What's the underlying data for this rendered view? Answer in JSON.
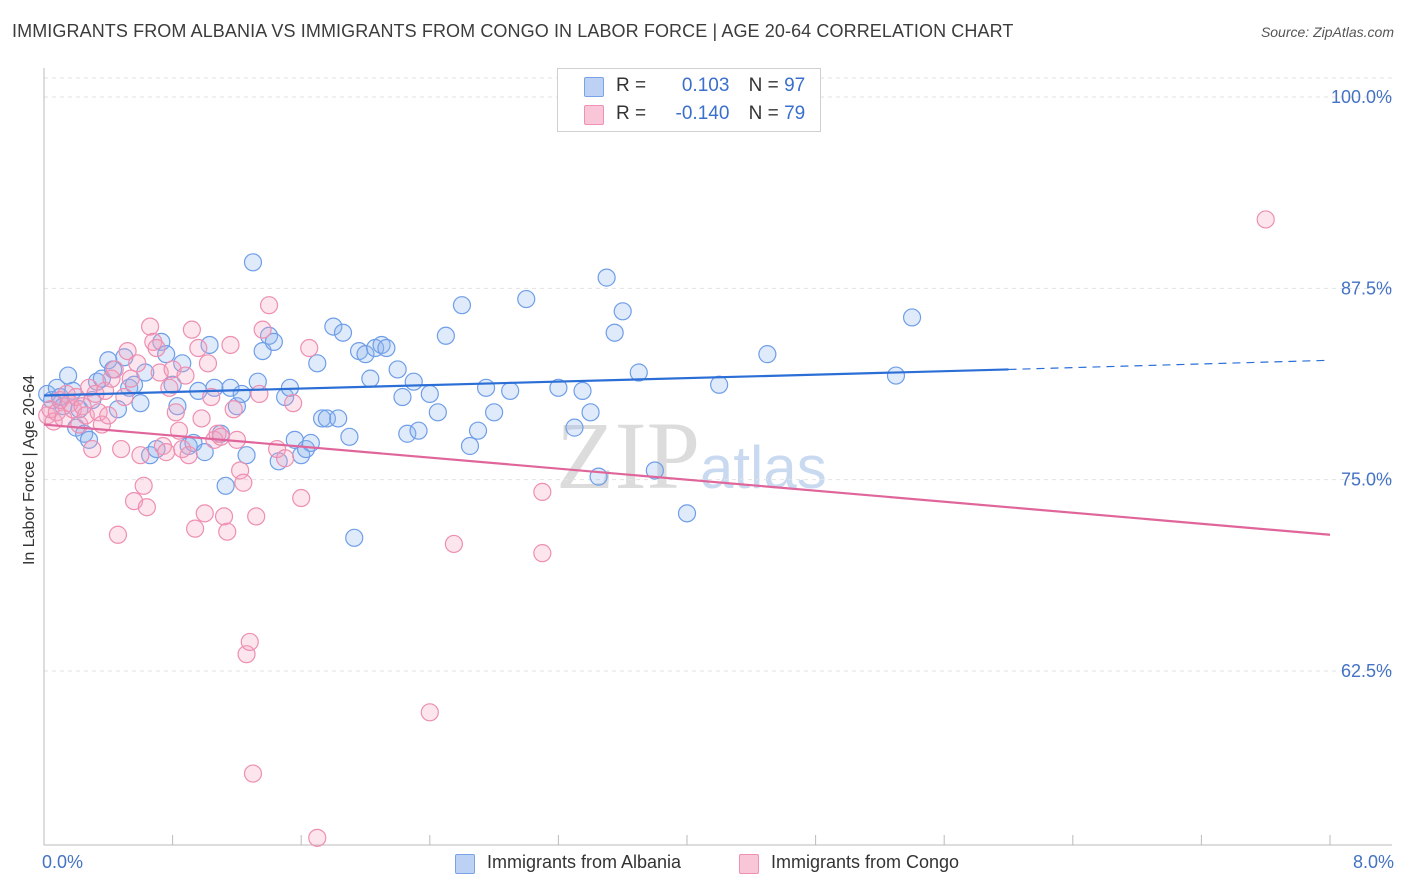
{
  "title": "IMMIGRANTS FROM ALBANIA VS IMMIGRANTS FROM CONGO IN LABOR FORCE | AGE 20-64 CORRELATION CHART",
  "source": "Source: ZipAtlas.com",
  "watermark": {
    "zip": "ZIP",
    "atlas": "atlas"
  },
  "legend": {
    "albania": {
      "r_label": "R =",
      "r_value": "0.103",
      "n_label": "N =",
      "n_value": "97"
    },
    "congo": {
      "r_label": "R =",
      "r_value": "-0.140",
      "n_label": "N =",
      "n_value": "79"
    }
  },
  "chart_data": {
    "type": "scatter",
    "title": "IMMIGRANTS FROM ALBANIA VS IMMIGRANTS FROM CONGO IN LABOR FORCE | AGE 20-64 CORRELATION CHART",
    "xlabel": "",
    "ylabel": "In Labor Force | Age 20-64",
    "x_tick_labels": [
      "0.0%",
      "8.0%"
    ],
    "y_tick_labels": [
      "100.0%",
      "87.5%",
      "75.0%",
      "62.5%"
    ],
    "xlim": [
      0,
      8
    ],
    "ylim": [
      51.5,
      102
    ],
    "grid": true,
    "colors": {
      "albania": "#6f9ee8",
      "albania_line": "#2b6fd6",
      "congo": "#f093b6",
      "congo_line": "#e0659a"
    },
    "series": [
      {
        "name": "Immigrants from Albania",
        "trend": {
          "x": [
            0.0,
            6.0
          ],
          "y": [
            80.5,
            82.2
          ],
          "dashed_x": [
            6.0,
            8.0
          ],
          "dashed_y": [
            82.2,
            82.8
          ]
        },
        "points": [
          [
            0.02,
            80.6
          ],
          [
            0.05,
            80.2
          ],
          [
            0.08,
            81.0
          ],
          [
            0.1,
            80.4
          ],
          [
            0.12,
            79.8
          ],
          [
            0.15,
            81.8
          ],
          [
            0.18,
            80.8
          ],
          [
            0.2,
            78.4
          ],
          [
            0.22,
            79.6
          ],
          [
            0.25,
            78.0
          ],
          [
            0.28,
            77.6
          ],
          [
            0.3,
            80.2
          ],
          [
            0.33,
            81.4
          ],
          [
            0.36,
            81.6
          ],
          [
            0.4,
            82.8
          ],
          [
            0.43,
            82.2
          ],
          [
            0.46,
            79.6
          ],
          [
            0.5,
            83.0
          ],
          [
            0.53,
            81.0
          ],
          [
            0.56,
            81.2
          ],
          [
            0.6,
            80.0
          ],
          [
            0.63,
            82.0
          ],
          [
            0.66,
            76.6
          ],
          [
            0.7,
            77.0
          ],
          [
            0.73,
            84.0
          ],
          [
            0.76,
            83.2
          ],
          [
            0.8,
            81.2
          ],
          [
            0.83,
            79.8
          ],
          [
            0.86,
            82.6
          ],
          [
            0.9,
            77.2
          ],
          [
            0.93,
            77.4
          ],
          [
            0.96,
            80.8
          ],
          [
            1.0,
            76.8
          ],
          [
            1.03,
            83.8
          ],
          [
            1.06,
            81.0
          ],
          [
            1.1,
            78.0
          ],
          [
            1.13,
            74.6
          ],
          [
            1.16,
            81.0
          ],
          [
            1.2,
            79.8
          ],
          [
            1.23,
            80.6
          ],
          [
            1.26,
            76.6
          ],
          [
            1.3,
            89.2
          ],
          [
            1.33,
            81.4
          ],
          [
            1.36,
            83.4
          ],
          [
            1.4,
            84.4
          ],
          [
            1.43,
            84.0
          ],
          [
            1.46,
            76.2
          ],
          [
            1.5,
            80.4
          ],
          [
            1.53,
            81.0
          ],
          [
            1.56,
            77.6
          ],
          [
            1.6,
            76.6
          ],
          [
            1.63,
            77.0
          ],
          [
            1.66,
            77.4
          ],
          [
            1.7,
            82.6
          ],
          [
            1.73,
            79.0
          ],
          [
            1.76,
            79.0
          ],
          [
            1.8,
            85.0
          ],
          [
            1.83,
            79.0
          ],
          [
            1.86,
            84.6
          ],
          [
            1.9,
            77.8
          ],
          [
            1.93,
            71.2
          ],
          [
            1.96,
            83.4
          ],
          [
            2.0,
            83.2
          ],
          [
            2.03,
            81.6
          ],
          [
            2.06,
            83.6
          ],
          [
            2.1,
            83.8
          ],
          [
            2.13,
            83.6
          ],
          [
            2.2,
            82.2
          ],
          [
            2.23,
            80.4
          ],
          [
            2.26,
            78.0
          ],
          [
            2.3,
            81.4
          ],
          [
            2.33,
            78.2
          ],
          [
            2.4,
            80.6
          ],
          [
            2.45,
            79.4
          ],
          [
            2.5,
            84.4
          ],
          [
            2.6,
            86.4
          ],
          [
            2.65,
            77.2
          ],
          [
            2.7,
            78.2
          ],
          [
            2.75,
            81.0
          ],
          [
            2.8,
            79.4
          ],
          [
            2.9,
            80.8
          ],
          [
            3.0,
            86.8
          ],
          [
            3.2,
            81.0
          ],
          [
            3.3,
            78.4
          ],
          [
            3.35,
            80.8
          ],
          [
            3.4,
            79.4
          ],
          [
            3.45,
            75.2
          ],
          [
            3.5,
            88.2
          ],
          [
            3.55,
            84.6
          ],
          [
            3.6,
            86.0
          ],
          [
            3.7,
            82.0
          ],
          [
            3.8,
            75.6
          ],
          [
            4.0,
            72.8
          ],
          [
            4.2,
            81.2
          ],
          [
            4.5,
            83.2
          ],
          [
            5.3,
            81.8
          ],
          [
            5.4,
            85.6
          ]
        ]
      },
      {
        "name": "Immigrants from Congo",
        "trend": {
          "x": [
            0.0,
            8.0
          ],
          "y": [
            78.6,
            71.4
          ]
        },
        "points": [
          [
            0.02,
            79.2
          ],
          [
            0.04,
            79.6
          ],
          [
            0.06,
            78.8
          ],
          [
            0.08,
            79.4
          ],
          [
            0.1,
            80.2
          ],
          [
            0.12,
            79.0
          ],
          [
            0.14,
            80.6
          ],
          [
            0.16,
            80.0
          ],
          [
            0.18,
            79.6
          ],
          [
            0.2,
            80.4
          ],
          [
            0.22,
            78.6
          ],
          [
            0.24,
            79.8
          ],
          [
            0.26,
            79.2
          ],
          [
            0.28,
            81.0
          ],
          [
            0.3,
            77.0
          ],
          [
            0.32,
            80.6
          ],
          [
            0.34,
            79.4
          ],
          [
            0.36,
            78.6
          ],
          [
            0.38,
            80.8
          ],
          [
            0.4,
            79.2
          ],
          [
            0.42,
            81.6
          ],
          [
            0.44,
            82.2
          ],
          [
            0.46,
            71.4
          ],
          [
            0.48,
            77.0
          ],
          [
            0.5,
            80.4
          ],
          [
            0.52,
            83.4
          ],
          [
            0.54,
            81.6
          ],
          [
            0.56,
            73.6
          ],
          [
            0.58,
            82.6
          ],
          [
            0.6,
            76.6
          ],
          [
            0.62,
            74.6
          ],
          [
            0.64,
            73.2
          ],
          [
            0.66,
            85.0
          ],
          [
            0.68,
            84.0
          ],
          [
            0.7,
            83.6
          ],
          [
            0.72,
            82.0
          ],
          [
            0.74,
            77.2
          ],
          [
            0.76,
            76.8
          ],
          [
            0.78,
            81.0
          ],
          [
            0.8,
            82.2
          ],
          [
            0.82,
            79.4
          ],
          [
            0.84,
            78.2
          ],
          [
            0.86,
            77.0
          ],
          [
            0.88,
            81.8
          ],
          [
            0.9,
            76.6
          ],
          [
            0.92,
            84.8
          ],
          [
            0.94,
            71.8
          ],
          [
            0.96,
            83.6
          ],
          [
            0.98,
            79.0
          ],
          [
            1.0,
            72.8
          ],
          [
            1.02,
            82.6
          ],
          [
            1.04,
            80.4
          ],
          [
            1.06,
            77.6
          ],
          [
            1.08,
            78.0
          ],
          [
            1.1,
            77.8
          ],
          [
            1.12,
            72.6
          ],
          [
            1.14,
            71.6
          ],
          [
            1.16,
            83.8
          ],
          [
            1.18,
            79.6
          ],
          [
            1.2,
            77.6
          ],
          [
            1.22,
            75.6
          ],
          [
            1.24,
            74.8
          ],
          [
            1.26,
            63.6
          ],
          [
            1.28,
            64.4
          ],
          [
            1.3,
            55.8
          ],
          [
            1.32,
            72.6
          ],
          [
            1.34,
            80.6
          ],
          [
            1.36,
            84.8
          ],
          [
            1.4,
            86.4
          ],
          [
            1.45,
            77.0
          ],
          [
            1.5,
            76.4
          ],
          [
            1.55,
            80.0
          ],
          [
            1.6,
            73.8
          ],
          [
            1.65,
            83.6
          ],
          [
            1.7,
            51.6
          ],
          [
            2.4,
            59.8
          ],
          [
            2.55,
            70.8
          ],
          [
            3.1,
            70.2
          ],
          [
            3.1,
            74.2
          ],
          [
            7.6,
            92.0
          ]
        ]
      }
    ]
  },
  "bottom_legend": [
    "Immigrants from Albania",
    "Immigrants from Congo"
  ]
}
